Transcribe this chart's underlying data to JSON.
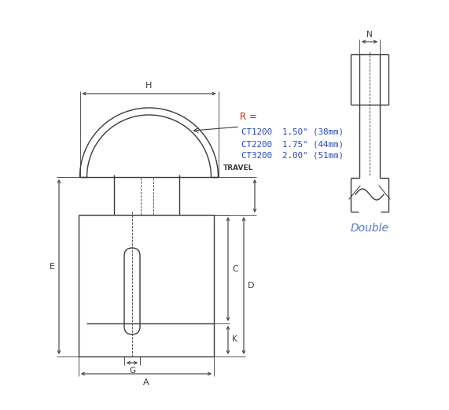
{
  "bg_color": "#ffffff",
  "line_color": "#3a3a3a",
  "dim_color": "#3a3a3a",
  "label_color_R": "#cc2200",
  "label_color_CT": "#2244bb",
  "double_color": "#5577cc",
  "R_label": "R =",
  "ct_lines": [
    "CT1200  1.50\" (38mm)",
    "CT2200  1.75\" (44mm)",
    "CT3200  2.00\" (51mm)"
  ],
  "double_text": "Double"
}
